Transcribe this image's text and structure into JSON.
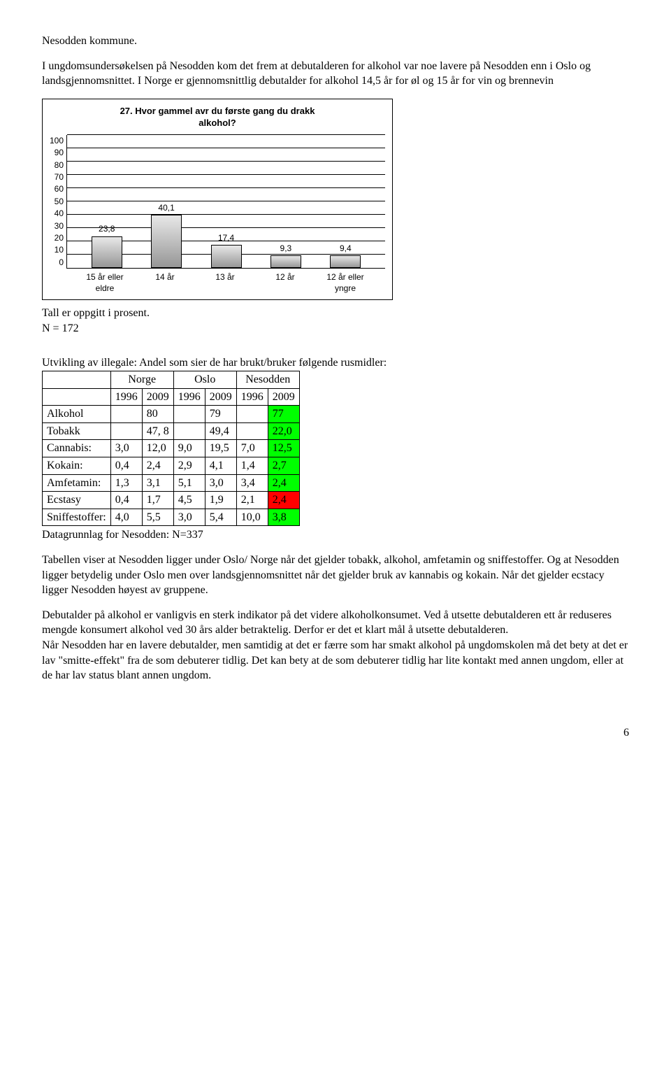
{
  "intro": {
    "line1": "Nesodden kommune.",
    "para1": "I ungdomsundersøkelsen på Nesodden kom det frem at debutalderen for alkohol var noe lavere på Nesodden enn i Oslo og landsgjennomsnittet. I Norge er gjennomsnittlig debutalder for alkohol 14,5 år for øl og 15 år for vin og brennevin"
  },
  "chart": {
    "title_l1": "27. Hvor gammel avr du første gang du drakk",
    "title_l2": "alkohol?",
    "ymax": 100,
    "ytick_step": 10,
    "categories": [
      "15 år eller eldre",
      "14 år",
      "13 år",
      "12 år",
      "12 år eller yngre"
    ],
    "values": [
      23.8,
      40.1,
      17.4,
      9.3,
      9.4
    ],
    "value_labels": [
      "23,8",
      "40,1",
      "17,4",
      "9,3",
      "9,4"
    ],
    "caption_l1": "Tall er oppgitt i prosent.",
    "caption_l2": "N = 172"
  },
  "table": {
    "heading": "Utvikling av illegale: Andel som sier de har brukt/bruker følgende rusmidler:",
    "group_headers": [
      "Norge",
      "Oslo",
      "Nesodden"
    ],
    "year_headers": [
      "1996",
      "2009",
      "1996",
      "2009",
      "1996",
      "2009"
    ],
    "rows": [
      {
        "label": "Alkohol",
        "cells": [
          "",
          "80",
          "",
          "79",
          "",
          "77"
        ],
        "hl": [
          null,
          null,
          null,
          null,
          null,
          "green"
        ]
      },
      {
        "label": "Tobakk",
        "cells": [
          "",
          "47, 8",
          "",
          "49,4",
          "",
          "22,0"
        ],
        "hl": [
          null,
          null,
          null,
          null,
          null,
          "green"
        ]
      },
      {
        "label": "Cannabis:",
        "cells": [
          "3,0",
          "12,0",
          "9,0",
          "19,5",
          "7,0",
          "12,5"
        ],
        "hl": [
          null,
          null,
          null,
          null,
          null,
          "green"
        ]
      },
      {
        "label": "Kokain:",
        "cells": [
          "0,4",
          "2,4",
          "2,9",
          "4,1",
          "1,4",
          "2,7"
        ],
        "hl": [
          null,
          null,
          null,
          null,
          null,
          "green"
        ]
      },
      {
        "label": "Amfetamin:",
        "cells": [
          "1,3",
          "3,1",
          "5,1",
          "3,0",
          "3,4",
          "2,4"
        ],
        "hl": [
          null,
          null,
          null,
          null,
          null,
          "green"
        ]
      },
      {
        "label": "Ecstasy",
        "cells": [
          "0,4",
          "1,7",
          "4,5",
          "1,9",
          "2,1",
          "2,4"
        ],
        "hl": [
          null,
          null,
          null,
          null,
          null,
          "red"
        ]
      },
      {
        "label": "Sniffestoffer:",
        "cells": [
          "4,0",
          "5,5",
          "3,0",
          "5,4",
          "10,0",
          "3,8"
        ],
        "hl": [
          null,
          null,
          null,
          null,
          null,
          "green"
        ]
      }
    ],
    "footer": "Datagrunnlag for Nesodden: N=337"
  },
  "body": {
    "p1": "Tabellen viser at Nesodden ligger under Oslo/ Norge når det gjelder tobakk, alkohol, amfetamin og sniffestoffer. Og at Nesodden ligger betydelig under Oslo men over landsgjennomsnittet når det gjelder bruk av kannabis og kokain. Når det gjelder ecstacy ligger Nesodden høyest av gruppene.",
    "p2": "Debutalder på alkohol er vanligvis en sterk indikator på det videre alkoholkonsumet. Ved å utsette debutalderen ett år reduseres mengde konsumert alkohol ved 30 års alder betraktelig. Derfor er det et klart mål å utsette debutalderen.",
    "p3": "Når Nesodden har en lavere debutalder, men samtidig at det er færre som har smakt alkohol på ungdomskolen må det bety at det er lav \"smitte-effekt\" fra de som debuterer tidlig. Det kan bety at de som debuterer tidlig har lite kontakt med annen ungdom, eller at de har lav status blant annen ungdom."
  },
  "page_number": "6"
}
